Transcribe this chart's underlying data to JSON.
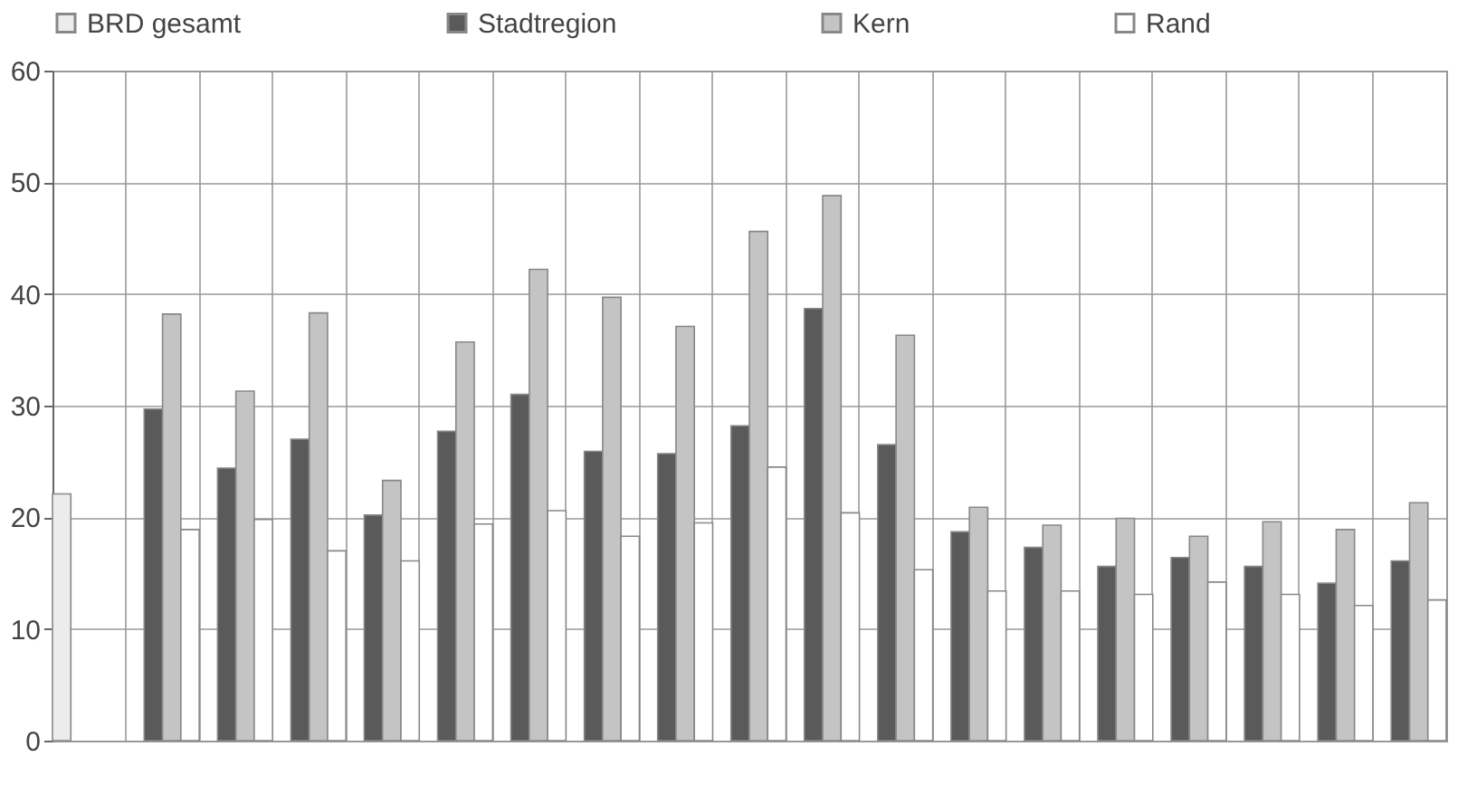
{
  "chart_data": {
    "type": "bar",
    "categories": [
      null,
      null,
      null,
      null,
      null,
      null,
      null,
      null,
      null,
      null,
      null,
      null,
      null,
      null,
      null,
      null,
      null,
      null,
      null
    ],
    "series": [
      {
        "name": "BRD gesamt",
        "color": "#ececec",
        "values": [
          22.1,
          null,
          null,
          null,
          null,
          null,
          null,
          null,
          null,
          null,
          null,
          null,
          null,
          null,
          null,
          null,
          null,
          null,
          null
        ]
      },
      {
        "name": "Stadtregion",
        "color": "#5a5a5a",
        "values": [
          null,
          29.7,
          24.4,
          27.0,
          20.2,
          27.7,
          31.0,
          25.9,
          25.7,
          28.2,
          38.7,
          26.5,
          18.7,
          17.3,
          15.6,
          16.4,
          15.6,
          14.1,
          16.1
        ]
      },
      {
        "name": "Kern",
        "color": "#c4c4c4",
        "values": [
          null,
          38.2,
          31.3,
          38.3,
          23.3,
          35.7,
          42.2,
          39.7,
          37.1,
          45.6,
          48.8,
          36.3,
          20.9,
          19.3,
          19.9,
          18.3,
          19.6,
          18.9,
          21.3
        ]
      },
      {
        "name": "Rand",
        "color": "#ffffff",
        "values": [
          null,
          18.9,
          19.8,
          17.0,
          16.1,
          19.4,
          20.6,
          18.3,
          19.5,
          24.5,
          20.4,
          15.3,
          13.4,
          13.4,
          13.1,
          14.2,
          13.1,
          12.1,
          12.6
        ]
      }
    ],
    "ylim": [
      0,
      60
    ],
    "yticks": [
      0,
      10,
      20,
      30,
      40,
      50,
      60
    ],
    "grid": true,
    "legend": "top",
    "tick_labels": "y"
  }
}
